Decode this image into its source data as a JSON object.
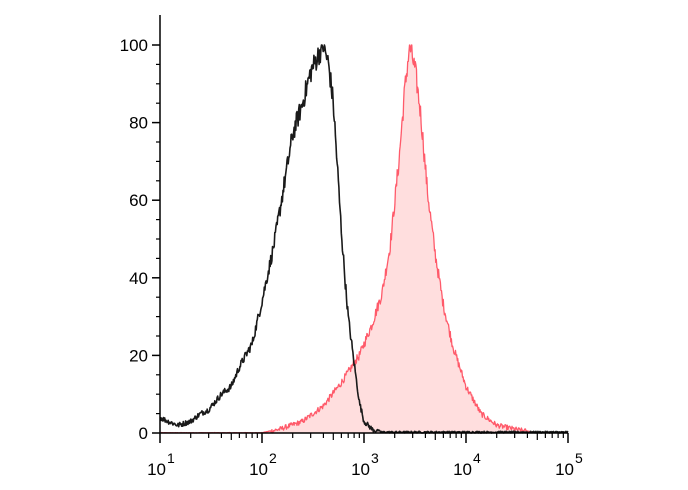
{
  "chart_data": {
    "type": "area",
    "title": "",
    "xlabel": "",
    "ylabel": "",
    "x_scale": "log",
    "xlim": [
      10,
      100000
    ],
    "ylim": [
      0,
      100
    ],
    "y_ticks": [
      "0",
      "20",
      "40",
      "60",
      "80",
      "100"
    ],
    "x_ticks": [
      {
        "base": "10",
        "exp": "1"
      },
      {
        "base": "10",
        "exp": "2"
      },
      {
        "base": "10",
        "exp": "3"
      },
      {
        "base": "10",
        "exp": "4"
      },
      {
        "base": "10",
        "exp": "5"
      }
    ],
    "grid": false,
    "legend": "none",
    "series": [
      {
        "color": "#1a1a1a",
        "filled": false,
        "x": [
          10,
          12,
          15,
          20,
          25,
          30,
          40,
          50,
          60,
          80,
          100,
          130,
          160,
          200,
          250,
          300,
          350,
          400,
          450,
          500,
          550,
          600,
          650,
          700,
          800,
          900,
          1000,
          1200,
          1500,
          2000,
          3000,
          100000
        ],
        "y": [
          4,
          3,
          2,
          3,
          5,
          6,
          10,
          12,
          17,
          23,
          34,
          48,
          62,
          77,
          85,
          93,
          97,
          100,
          95,
          85,
          68,
          52,
          40,
          30,
          18,
          8,
          3,
          1,
          0,
          0,
          0,
          0
        ]
      },
      {
        "color": "#ff5a6a",
        "fill": "#ffdede",
        "filled": true,
        "x": [
          10,
          100,
          150,
          250,
          400,
          600,
          900,
          1200,
          1500,
          1800,
          2200,
          2500,
          2800,
          3200,
          3600,
          4200,
          5000,
          6000,
          7500,
          10000,
          14000,
          20000,
          30000,
          50000,
          100000
        ],
        "y": [
          0,
          0,
          1,
          3,
          7,
          13,
          20,
          28,
          36,
          48,
          70,
          88,
          100,
          93,
          82,
          62,
          46,
          33,
          22,
          12,
          5,
          2,
          1,
          0,
          0
        ]
      }
    ]
  }
}
